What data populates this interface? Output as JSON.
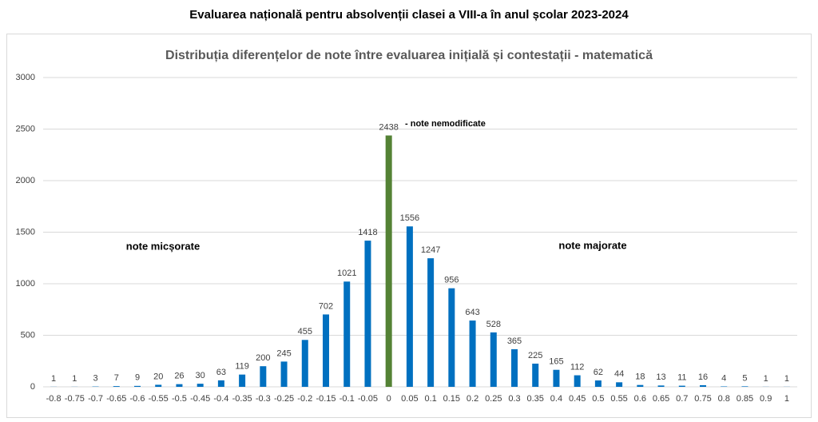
{
  "chart_data": {
    "type": "bar",
    "title": "Evaluarea națională pentru absolvenții clasei a VIII-a în anul școlar 2023-2024",
    "subtitle": "Distribuția diferențelor de note între evaluarea inițială și contestații - matematică",
    "categories": [
      "-0.8",
      "-0.75",
      "-0.7",
      "-0.65",
      "-0.6",
      "-0.55",
      "-0.5",
      "-0.45",
      "-0.4",
      "-0.35",
      "-0.3",
      "-0.25",
      "-0.2",
      "-0.15",
      "-0.1",
      "-0.05",
      "0",
      "0.05",
      "0.1",
      "0.15",
      "0.2",
      "0.25",
      "0.3",
      "0.35",
      "0.4",
      "0.45",
      "0.5",
      "0.55",
      "0.6",
      "0.65",
      "0.7",
      "0.75",
      "0.8",
      "0.85",
      "0.9",
      "1"
    ],
    "values": [
      1,
      1,
      3,
      7,
      9,
      20,
      26,
      30,
      63,
      119,
      200,
      245,
      455,
      702,
      1021,
      1418,
      2438,
      1556,
      1247,
      956,
      643,
      528,
      365,
      225,
      165,
      112,
      62,
      44,
      18,
      13,
      11,
      16,
      4,
      5,
      1,
      1
    ],
    "colors": [
      "#0070c0",
      "#0070c0",
      "#0070c0",
      "#0070c0",
      "#0070c0",
      "#0070c0",
      "#0070c0",
      "#0070c0",
      "#0070c0",
      "#0070c0",
      "#0070c0",
      "#0070c0",
      "#0070c0",
      "#0070c0",
      "#0070c0",
      "#0070c0",
      "#548235",
      "#0070c0",
      "#0070c0",
      "#0070c0",
      "#0070c0",
      "#0070c0",
      "#0070c0",
      "#0070c0",
      "#0070c0",
      "#0070c0",
      "#0070c0",
      "#0070c0",
      "#0070c0",
      "#0070c0",
      "#0070c0",
      "#0070c0",
      "#0070c0",
      "#0070c0",
      "#0070c0",
      "#0070c0"
    ],
    "annotations": [
      "note micșorate",
      "-  note nemodificate",
      "note majorate"
    ],
    "ylim": [
      0,
      3000
    ],
    "yticks": [
      0,
      500,
      1000,
      1500,
      2000,
      2500,
      3000
    ],
    "grid": true
  }
}
